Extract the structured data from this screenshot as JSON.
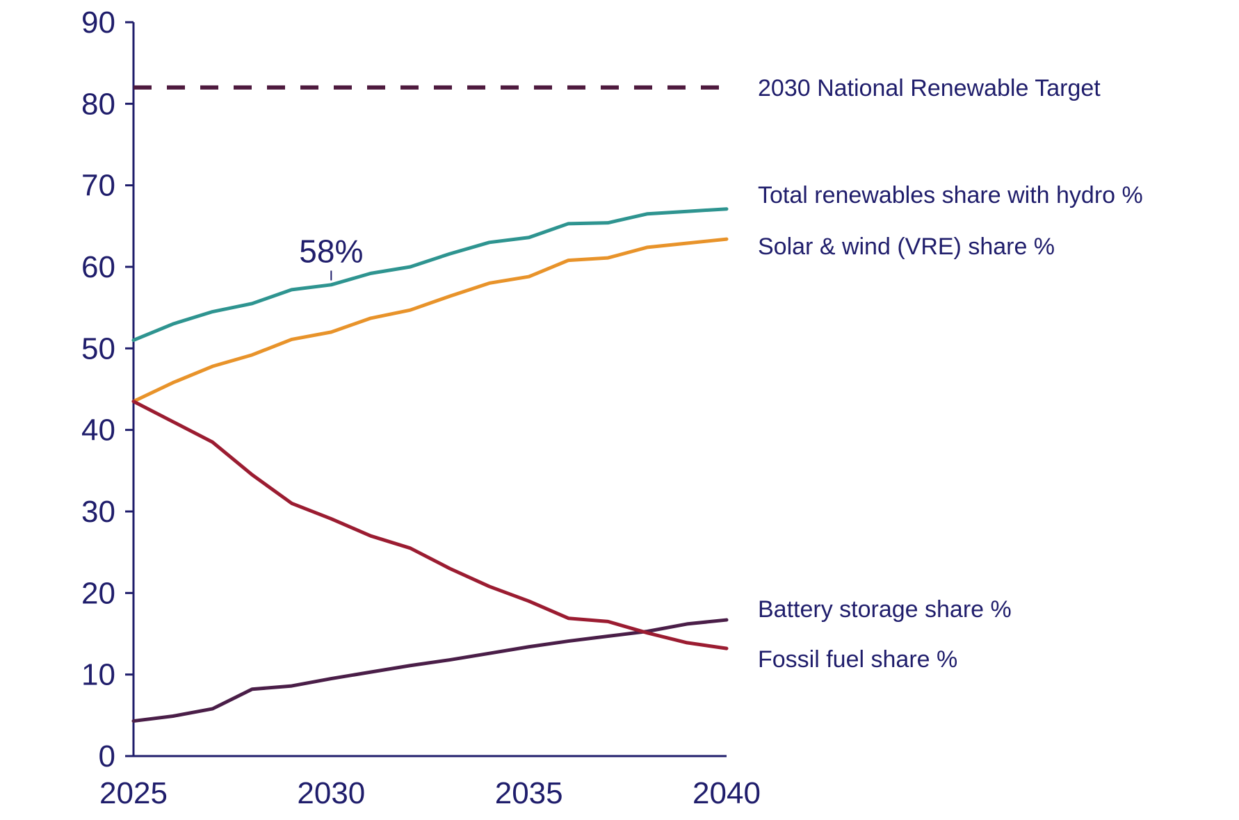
{
  "chart_data": {
    "type": "line",
    "title": "",
    "xlabel": "",
    "ylabel": "",
    "xlim": [
      2025,
      2040
    ],
    "ylim": [
      0,
      90
    ],
    "x_ticks": [
      "2025",
      "2030",
      "2035",
      "2040"
    ],
    "y_ticks": [
      "0",
      "10",
      "20",
      "30",
      "40",
      "50",
      "60",
      "70",
      "80",
      "90"
    ],
    "grid": false,
    "legend": "direct labels at right of lines",
    "x": [
      2025,
      2026,
      2027,
      2028,
      2029,
      2030,
      2031,
      2032,
      2033,
      2034,
      2035,
      2036,
      2037,
      2038,
      2039,
      2040
    ],
    "series": [
      {
        "name": "Total renewables share with hydro %",
        "color": "#2e9490",
        "values": [
          51,
          53,
          54.5,
          55.5,
          57.2,
          57.8,
          59.2,
          60,
          61.6,
          63,
          63.6,
          65.3,
          65.4,
          66.5,
          66.8,
          67.1
        ]
      },
      {
        "name": "Solar & wind (VRE) share %",
        "color": "#e8932a",
        "values": [
          43.5,
          45.8,
          47.8,
          49.2,
          51.1,
          52,
          53.7,
          54.7,
          56.4,
          58,
          58.8,
          60.8,
          61.1,
          62.4,
          62.9,
          63.4
        ]
      },
      {
        "name": "Battery storage share %",
        "color": "#4a1e48",
        "values": [
          4.3,
          4.9,
          5.8,
          8.2,
          8.6,
          9.5,
          10.3,
          11.1,
          11.8,
          12.6,
          13.4,
          14.1,
          14.7,
          15.3,
          16.2,
          16.7
        ]
      },
      {
        "name": "Fossil fuel share %",
        "color": "#9b1c31",
        "values": [
          43.5,
          41,
          38.5,
          34.5,
          31,
          29.1,
          27,
          25.5,
          23,
          20.8,
          19,
          16.9,
          16.5,
          15.1,
          13.9,
          13.2
        ]
      }
    ],
    "reference_lines": [
      {
        "name": "2030 National Renewable Target",
        "value": 82,
        "style": "dashed",
        "color": "#4e1a3e"
      }
    ],
    "annotations": [
      {
        "text": "58%",
        "x": 2030,
        "y": 58
      }
    ]
  }
}
